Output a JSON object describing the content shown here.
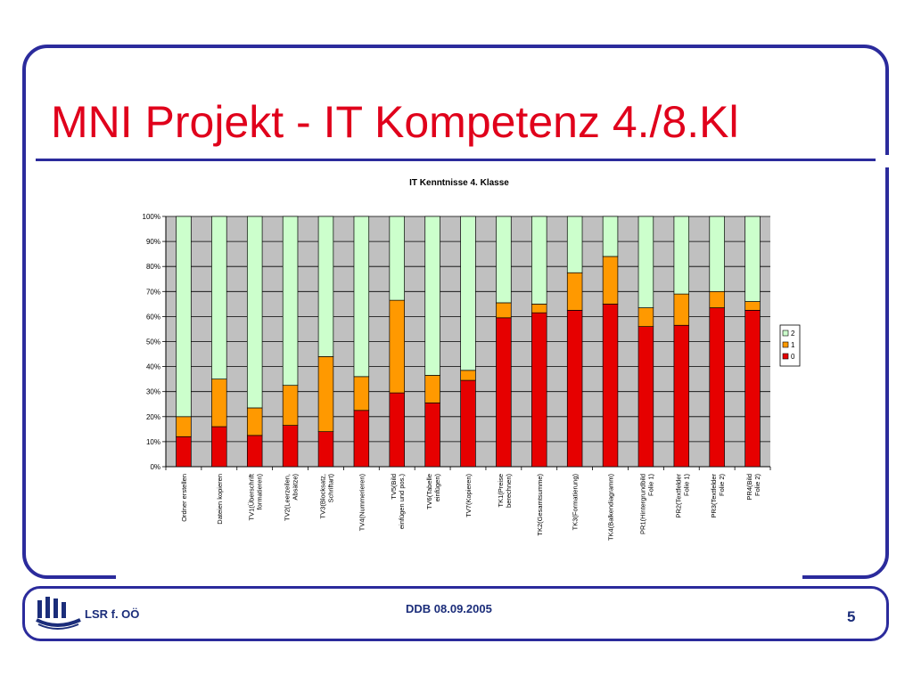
{
  "slide": {
    "title": "MNI Projekt - IT Kompetenz 4./8.Kl",
    "footer_org": "LSR f. OÖ",
    "footer_date": "DDB 08.09.2005",
    "page_number": "5"
  },
  "colors": {
    "frame": "#2b2b9c",
    "title": "#e0001b",
    "series_0": "#e60000",
    "series_1": "#ff9900",
    "series_2": "#ccffcc",
    "plot_bg": "#c0c0c0"
  },
  "chart_data": {
    "type": "bar",
    "stacked": true,
    "percent_stacked": true,
    "title": "IT Kenntnisse 4. Klasse",
    "ylim": [
      0,
      100
    ],
    "yticks": [
      "0%",
      "10%",
      "20%",
      "30%",
      "40%",
      "50%",
      "60%",
      "70%",
      "80%",
      "90%",
      "100%"
    ],
    "grid": true,
    "legend_position": "right",
    "categories": [
      "Ordner erstellen",
      "Dateien kopieren",
      "TV1(Überschrift formatieren)",
      "TV2(Leerzeilen, Absätze)",
      "TV3(Blocksatz, Schriftart)",
      "TV4(Nummerieren)",
      "TV5(Bild einfügen und pos.)",
      "TV6(Tabelle einfügen)",
      "TV7(Kopieren)",
      "TK1(Preise berechnen)",
      "TK2(Gesamtsumme)",
      "TK3(Formatierung)",
      "TK4(Balkendiagramm)",
      "PR1(Hintergrundbild Folie 1)",
      "PR2(Textfelder Folie 1)",
      "PR3(Textfelder Folie 2)",
      "PR4(Bild Folie 2)"
    ],
    "series": [
      {
        "name": "0",
        "values": [
          12,
          16,
          12.5,
          16.5,
          14,
          22.5,
          29.5,
          25.5,
          34.5,
          59.5,
          61.5,
          62.5,
          65,
          56,
          56.5,
          63.5,
          62.5
        ]
      },
      {
        "name": "1",
        "values": [
          8,
          19,
          11,
          16,
          30,
          13.5,
          37,
          11,
          4,
          6,
          3.5,
          15,
          19,
          7.5,
          12.5,
          6.5,
          3.5
        ]
      },
      {
        "name": "2",
        "values": [
          80,
          65,
          76.5,
          67.5,
          56,
          64,
          33.5,
          63.5,
          61.5,
          34.5,
          35,
          22.5,
          16,
          36.5,
          31,
          30,
          34
        ]
      }
    ],
    "legend": [
      "2",
      "1",
      "0"
    ]
  }
}
